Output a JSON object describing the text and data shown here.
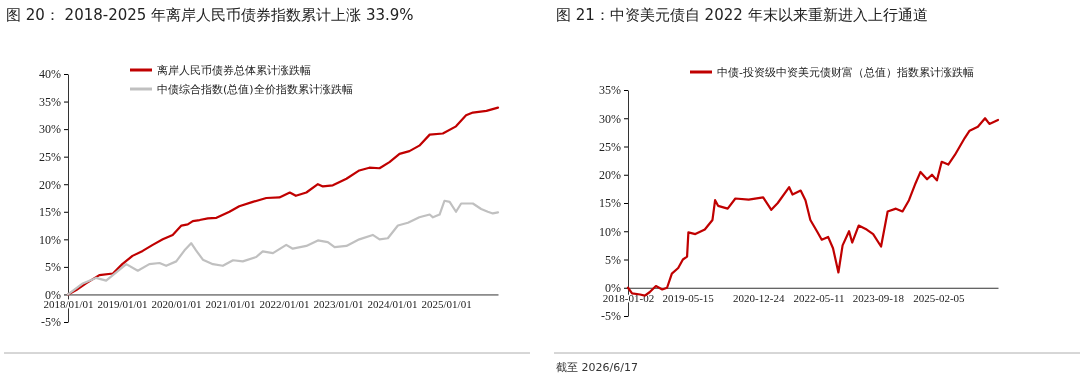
{
  "chart_data": [
    {
      "type": "line",
      "title": "图 20： 2018-2025 年离岸人民币债券指数累计上涨 33.9%",
      "xlim": [
        "2018-01-01",
        "2025-12-18"
      ],
      "xticks": [
        {
          "value": "2018-01-01",
          "label": "2018/01/01"
        },
        {
          "value": "2019-01-01",
          "label": "2019/01/01"
        },
        {
          "value": "2020-01-01",
          "label": "2020/01/01"
        },
        {
          "value": "2021-01-01",
          "label": "2021/01/01"
        },
        {
          "value": "2022-01-01",
          "label": "2022/01/01"
        },
        {
          "value": "2023-01-01",
          "label": "2023/01/01"
        },
        {
          "value": "2024-01-01",
          "label": "2024/01/01"
        },
        {
          "value": "2025-01-01",
          "label": "2025/01/01"
        }
      ],
      "ylim": [
        -5,
        40
      ],
      "yticks": [
        {
          "value": -5,
          "label": "-5%"
        },
        {
          "value": 0,
          "label": "0%"
        },
        {
          "value": 5,
          "label": "5%"
        },
        {
          "value": 10,
          "label": "10%"
        },
        {
          "value": 15,
          "label": "15%"
        },
        {
          "value": 20,
          "label": "20%"
        },
        {
          "value": 25,
          "label": "25%"
        },
        {
          "value": 30,
          "label": "30%"
        },
        {
          "value": 35,
          "label": "35%"
        },
        {
          "value": 40,
          "label": "40%"
        }
      ],
      "legend": "top",
      "series": [
        {
          "name": "离岸人民币债券总体累计涨跌幅",
          "color": "#c00000",
          "x": [
            "2018-01-01",
            "2018-02-26",
            "2018-05-03",
            "2018-08-01",
            "2018-11-01",
            "2019-01-03",
            "2019-03-13",
            "2019-05-21",
            "2019-07-28",
            "2019-10-04",
            "2019-12-10",
            "2020-02-07",
            "2020-03-21",
            "2020-04-24",
            "2020-06-09",
            "2020-08-04",
            "2020-10-01",
            "2020-12-28",
            "2021-03-04",
            "2021-06-04",
            "2021-09-03",
            "2021-12-01",
            "2022-02-09",
            "2022-03-22",
            "2022-06-01",
            "2022-08-18",
            "2022-09-21",
            "2022-11-27",
            "2023-02-27",
            "2023-05-25",
            "2023-08-01",
            "2023-10-09",
            "2023-12-15",
            "2024-02-21",
            "2024-04-28",
            "2024-07-04",
            "2024-09-12",
            "2024-12-10",
            "2025-03-09",
            "2025-05-16",
            "2025-07-01",
            "2025-10-01",
            "2025-12-18"
          ],
          "values": [
            0,
            0.8,
            2.0,
            3.5,
            3.8,
            5.5,
            7.0,
            7.9,
            9.0,
            10.0,
            10.8,
            12.5,
            12.7,
            13.3,
            13.5,
            13.8,
            13.9,
            15.0,
            16.0,
            16.8,
            17.5,
            17.6,
            18.5,
            17.9,
            18.5,
            20.0,
            19.6,
            19.8,
            21.0,
            22.5,
            23.0,
            22.9,
            24.0,
            25.5,
            26.0,
            27.0,
            29.0,
            29.2,
            30.5,
            32.5,
            33.0,
            33.3,
            33.9
          ]
        },
        {
          "name": "中债综合指数(总值)全价指数累计涨跌幅",
          "color": "#c0c0c0",
          "x": [
            "2018-01-01",
            "2018-04-11",
            "2018-07-09",
            "2018-09-16",
            "2018-12-16",
            "2019-01-30",
            "2019-04-18",
            "2019-07-05",
            "2019-09-12",
            "2019-10-27",
            "2020-01-03",
            "2020-02-28",
            "2020-04-13",
            "2020-05-16",
            "2020-07-01",
            "2020-09-07",
            "2020-11-13",
            "2021-01-21",
            "2021-03-28",
            "2021-06-27",
            "2021-08-10",
            "2021-10-18",
            "2022-01-16",
            "2022-03-01",
            "2022-06-01",
            "2022-08-18",
            "2022-10-24",
            "2022-12-09",
            "2023-02-27",
            "2023-05-25",
            "2023-08-24",
            "2023-10-09",
            "2023-12-04",
            "2024-02-10",
            "2024-04-18",
            "2024-07-04",
            "2024-09-12",
            "2024-10-04",
            "2024-11-18",
            "2024-12-21",
            "2025-01-25",
            "2025-03-09",
            "2025-04-13",
            "2025-07-01",
            "2025-08-26",
            "2025-10-10",
            "2025-11-13",
            "2025-12-18"
          ],
          "values": [
            0,
            2.0,
            3.0,
            2.5,
            4.5,
            5.5,
            4.3,
            5.5,
            5.7,
            5.2,
            6.0,
            8.0,
            9.3,
            8.0,
            6.3,
            5.5,
            5.2,
            6.2,
            6.0,
            6.8,
            7.8,
            7.5,
            9.0,
            8.3,
            8.8,
            9.8,
            9.5,
            8.6,
            8.8,
            10.0,
            10.8,
            10.0,
            10.2,
            12.5,
            13.0,
            14.0,
            14.5,
            14.0,
            14.5,
            17.0,
            16.8,
            15.0,
            16.5,
            16.5,
            15.5,
            15.0,
            14.7,
            14.9
          ]
        }
      ]
    },
    {
      "type": "line",
      "title": "图 21：中资美元债自 2022 年末以来重新进入上行通道",
      "xlim": [
        "2018-01-02",
        "2026-06-17"
      ],
      "xticks": [
        "2018-01-02",
        "2019-05-15",
        "2020-12-24",
        "2022-05-11",
        "2023-09-18",
        "2025-02-05"
      ],
      "ylim": [
        -5,
        35
      ],
      "yticks": [
        {
          "value": -5,
          "label": "-5%"
        },
        {
          "value": 0,
          "label": "0%"
        },
        {
          "value": 5,
          "label": "5%"
        },
        {
          "value": 10,
          "label": "10%"
        },
        {
          "value": 15,
          "label": "15%"
        },
        {
          "value": 20,
          "label": "20%"
        },
        {
          "value": 25,
          "label": "25%"
        },
        {
          "value": 30,
          "label": "30%"
        },
        {
          "value": 35,
          "label": "35%"
        }
      ],
      "legend": "top",
      "annotations": [
        "截至 2026/6/17"
      ],
      "series": [
        {
          "name": "中债-投资级中资美元债财富（总值）指数累计涨跌幅",
          "color": "#c00000",
          "x": [
            "2018-01-02",
            "2018-02-05",
            "2018-04-13",
            "2018-05-22",
            "2018-07-01",
            "2018-08-23",
            "2018-10-15",
            "2018-11-24",
            "2019-01-03",
            "2019-02-25",
            "2019-04-05",
            "2019-05-10",
            "2019-05-21",
            "2019-07-18",
            "2019-10-05",
            "2019-12-08",
            "2019-12-30",
            "2020-01-24",
            "2020-04-13",
            "2020-06-16",
            "2020-10-05",
            "2021-02-03",
            "2021-04-12",
            "2021-06-05",
            "2021-09-08",
            "2021-10-06",
            "2021-12-13",
            "2022-01-22",
            "2022-03-04",
            "2022-04-28",
            "2022-06-07",
            "2022-07-30",
            "2022-09-09",
            "2022-10-24",
            "2022-11-28",
            "2023-01-21",
            "2023-02-16",
            "2023-04-11",
            "2023-06-17",
            "2023-08-10",
            "2023-10-15",
            "2023-12-09",
            "2024-02-16",
            "2024-04-11",
            "2024-06-04",
            "2024-07-29",
            "2024-09-08",
            "2024-11-02",
            "2024-12-13",
            "2025-01-23",
            "2025-03-04",
            "2025-04-28",
            "2025-06-22",
            "2025-09-12",
            "2025-10-23",
            "2025-12-31",
            "2026-03-01",
            "2026-04-06",
            "2026-06-17"
          ],
          "values": [
            0,
            -1.0,
            -1.2,
            -1.4,
            -0.8,
            0.3,
            -0.3,
            0.0,
            2.5,
            3.5,
            5.0,
            5.5,
            9.8,
            9.5,
            10.3,
            12.0,
            15.5,
            14.5,
            14.0,
            15.8,
            15.6,
            16.0,
            13.8,
            15.0,
            17.8,
            16.5,
            17.2,
            15.5,
            12.0,
            10.0,
            8.5,
            9.0,
            7.0,
            2.7,
            7.5,
            10.0,
            8.0,
            11.0,
            10.3,
            9.5,
            7.3,
            13.5,
            14.0,
            13.5,
            15.5,
            18.5,
            20.5,
            19.2,
            20.0,
            19.0,
            22.3,
            21.8,
            23.5,
            26.5,
            27.8,
            28.5,
            30.0,
            29.0,
            29.7
          ]
        }
      ]
    }
  ]
}
